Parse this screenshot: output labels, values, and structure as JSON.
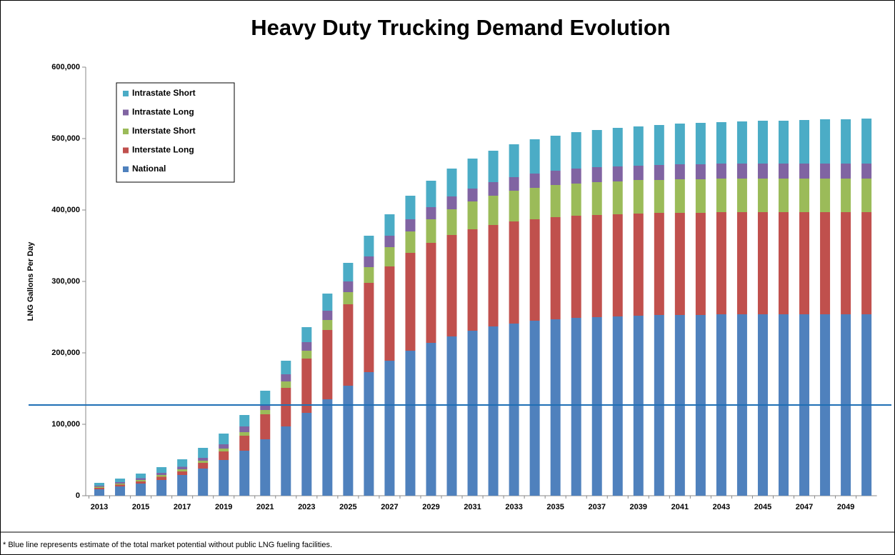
{
  "chart_data": {
    "type": "bar",
    "stacked": true,
    "title": "Heavy Duty Trucking Demand Evolution",
    "y_label": "LNG Gallons Per Day",
    "annotation": "* Blue line represents estimate of the total market potential without public LNG fueling facilities.",
    "reference_line": {
      "value": 127000,
      "color": "#1f6fb5"
    },
    "categories": [
      "2013",
      null,
      "2015",
      null,
      "2017",
      null,
      "2019",
      null,
      "2021",
      null,
      "2023",
      null,
      "2025",
      null,
      "2027",
      null,
      "2029",
      null,
      "2031",
      null,
      "2033",
      null,
      "2035",
      null,
      "2037",
      null,
      "2039",
      null,
      "2041",
      null,
      "2043",
      null,
      "2045",
      null,
      "2047",
      null,
      "2049",
      null
    ],
    "series": [
      {
        "name": "National",
        "color": "#4f81bd",
        "values": [
          9000,
          13000,
          17000,
          22000,
          29000,
          38000,
          50000,
          63000,
          79000,
          97000,
          116000,
          135000,
          154000,
          173000,
          189000,
          203000,
          214000,
          223000,
          231000,
          237000,
          241000,
          245000,
          247000,
          249000,
          250000,
          251000,
          252000,
          253000,
          253000,
          253000,
          254000,
          254000,
          254000,
          254000,
          254000,
          254000,
          254000,
          254000
        ]
      },
      {
        "name": "Interstate Long",
        "color": "#c0504d",
        "values": [
          2000,
          2500,
          3000,
          4500,
          5000,
          8000,
          12000,
          21000,
          35000,
          54000,
          76000,
          97000,
          114000,
          125000,
          132000,
          137000,
          140000,
          142000,
          142000,
          142000,
          143000,
          142000,
          143000,
          143000,
          143000,
          143000,
          143000,
          143000,
          143000,
          143000,
          143000,
          143000,
          143000,
          143000,
          143000,
          143000,
          143000,
          143000
        ]
      },
      {
        "name": "Interstate Short",
        "color": "#9bbb59",
        "values": [
          1500,
          1500,
          2000,
          2500,
          3000,
          3000,
          4000,
          5000,
          6000,
          9000,
          11000,
          14000,
          17000,
          22000,
          27000,
          30000,
          33000,
          36000,
          39000,
          41000,
          43000,
          44000,
          45000,
          45000,
          46000,
          46000,
          47000,
          46000,
          47000,
          47000,
          47000,
          47000,
          47000,
          47000,
          47000,
          47000,
          47000,
          47000
        ]
      },
      {
        "name": "Intrastate Long",
        "color": "#8064a2",
        "values": [
          1500,
          2000,
          2500,
          3000,
          3500,
          4000,
          6000,
          8000,
          7000,
          10000,
          12000,
          13000,
          15000,
          15000,
          16000,
          17000,
          17000,
          18000,
          18000,
          19000,
          19000,
          20000,
          20000,
          21000,
          21000,
          21000,
          20000,
          21000,
          21000,
          21000,
          21000,
          21000,
          21000,
          21000,
          21000,
          21000,
          21000,
          21000
        ]
      },
      {
        "name": "Intrastate Short",
        "color": "#4bacc6",
        "values": [
          4000,
          5000,
          6500,
          8000,
          10500,
          14000,
          15000,
          16000,
          20000,
          19000,
          21000,
          24000,
          26000,
          29000,
          30000,
          33000,
          37000,
          39000,
          42000,
          44000,
          46000,
          48000,
          49000,
          51000,
          52000,
          54000,
          55000,
          56000,
          57000,
          58000,
          58000,
          59000,
          60000,
          60000,
          61000,
          62000,
          62000,
          63000
        ]
      }
    ],
    "ylim": [
      0,
      600000
    ],
    "yticks": [
      0,
      {
        "value": 100000,
        "label": "100,000"
      },
      {
        "value": 200000,
        "label": "200,000"
      },
      {
        "value": 300000,
        "label": "300,000"
      },
      {
        "value": 400000,
        "label": "400,000"
      },
      {
        "value": 500000,
        "label": "500,000"
      },
      {
        "value": 600000,
        "label": "600,000"
      }
    ],
    "legend": "upper left"
  }
}
